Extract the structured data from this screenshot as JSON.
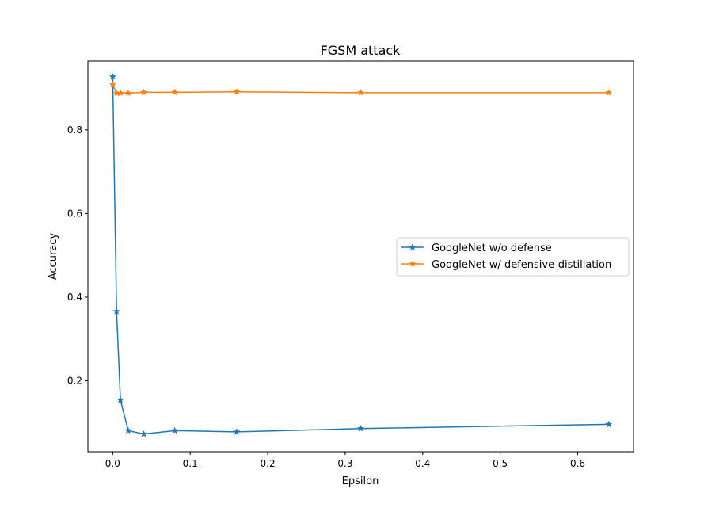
{
  "chart_data": {
    "type": "line",
    "title": "FGSM attack",
    "xlabel": "Epsilon",
    "ylabel": "Accuracy",
    "xlim": [
      -0.032,
      0.672
    ],
    "ylim": [
      0.0305,
      0.9645
    ],
    "xticks": [
      0.0,
      0.1,
      0.2,
      0.3,
      0.4,
      0.5,
      0.6
    ],
    "xtick_labels": [
      "0.0",
      "0.1",
      "0.2",
      "0.3",
      "0.4",
      "0.5",
      "0.6"
    ],
    "yticks": [
      0.2,
      0.4,
      0.6,
      0.8
    ],
    "ytick_labels": [
      "0.2",
      "0.4",
      "0.6",
      "0.8"
    ],
    "grid": false,
    "legend_position": "center-right",
    "marker": "star",
    "series": [
      {
        "name": "GoogleNet w/o defense",
        "color": "#1f77b4",
        "x": [
          0.0,
          0.005,
          0.01,
          0.02,
          0.04,
          0.08,
          0.16,
          0.32,
          0.64
        ],
        "y": [
          0.927,
          0.366,
          0.154,
          0.081,
          0.073,
          0.081,
          0.078,
          0.086,
          0.096
        ]
      },
      {
        "name": "GoogleNet w/ defensive-distillation",
        "color": "#ff7f0e",
        "x": [
          0.0,
          0.005,
          0.01,
          0.02,
          0.04,
          0.08,
          0.16,
          0.32,
          0.64
        ],
        "y": [
          0.908,
          0.888,
          0.888,
          0.888,
          0.89,
          0.89,
          0.891,
          0.889,
          0.889
        ]
      }
    ]
  }
}
